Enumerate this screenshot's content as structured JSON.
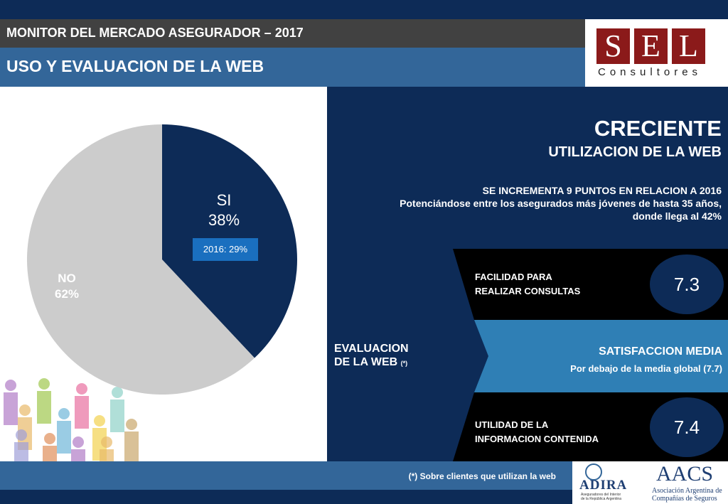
{
  "header": {
    "title": "MONITOR DEL MERCADO ASEGURADOR – 2017",
    "subtitle": "USO Y EVALUACION DE LA WEB"
  },
  "logo": {
    "letters": [
      "S",
      "E",
      "L"
    ],
    "subtext": "Consultores"
  },
  "chart_data": {
    "type": "pie",
    "slices": [
      {
        "label": "SI",
        "value": 38,
        "display": "38%"
      },
      {
        "label": "NO",
        "value": 62,
        "display": "62%"
      }
    ],
    "colors": {
      "SI": "#0d2b57",
      "NO": "#cccccc"
    },
    "annotation": "2016: 29%"
  },
  "right": {
    "headline": "CRECIENTE",
    "headline2": "UTILIZACION DE LA WEB",
    "line1": "SE INCREMENTA 9 PUNTOS EN RELACION A 2016",
    "line2": "Potenciándose entre los asegurados más jóvenes de hasta 35 años,",
    "line3": "donde llega al 42%"
  },
  "evaluation": {
    "label_line1": "EVALUACION",
    "label_line2": "DE LA WEB",
    "note_mark": "(*)",
    "row1": {
      "line1": "FACILIDAD PARA",
      "line2": "REALIZAR CONSULTAS",
      "score": "7.3"
    },
    "row2": {
      "title": "SATISFACCION MEDIA",
      "subtitle": "Por debajo de la media global (7.7)"
    },
    "row3": {
      "line1": "UTILIDAD DE LA",
      "line2": "INFORMACION CONTENIDA",
      "score": "7.4"
    }
  },
  "footer": {
    "note": "(*) Sobre clientes que utilizan la web",
    "adira_name": "ADIRA",
    "adira_sub1": "Aseguradores del Interior",
    "adira_sub2": "de la República Argentina",
    "aacs_name": "AACS",
    "aacs_sub1": "Asociación Argentina de",
    "aacs_sub2": "Compañías de Seguros"
  },
  "colors": {
    "navy": "#0d2b57",
    "steel_blue": "#336699",
    "mid_blue": "#1a6fbf",
    "banner_blue": "#2f7fb5",
    "black_band": "#000000",
    "logo_red": "#8b1a1a"
  }
}
